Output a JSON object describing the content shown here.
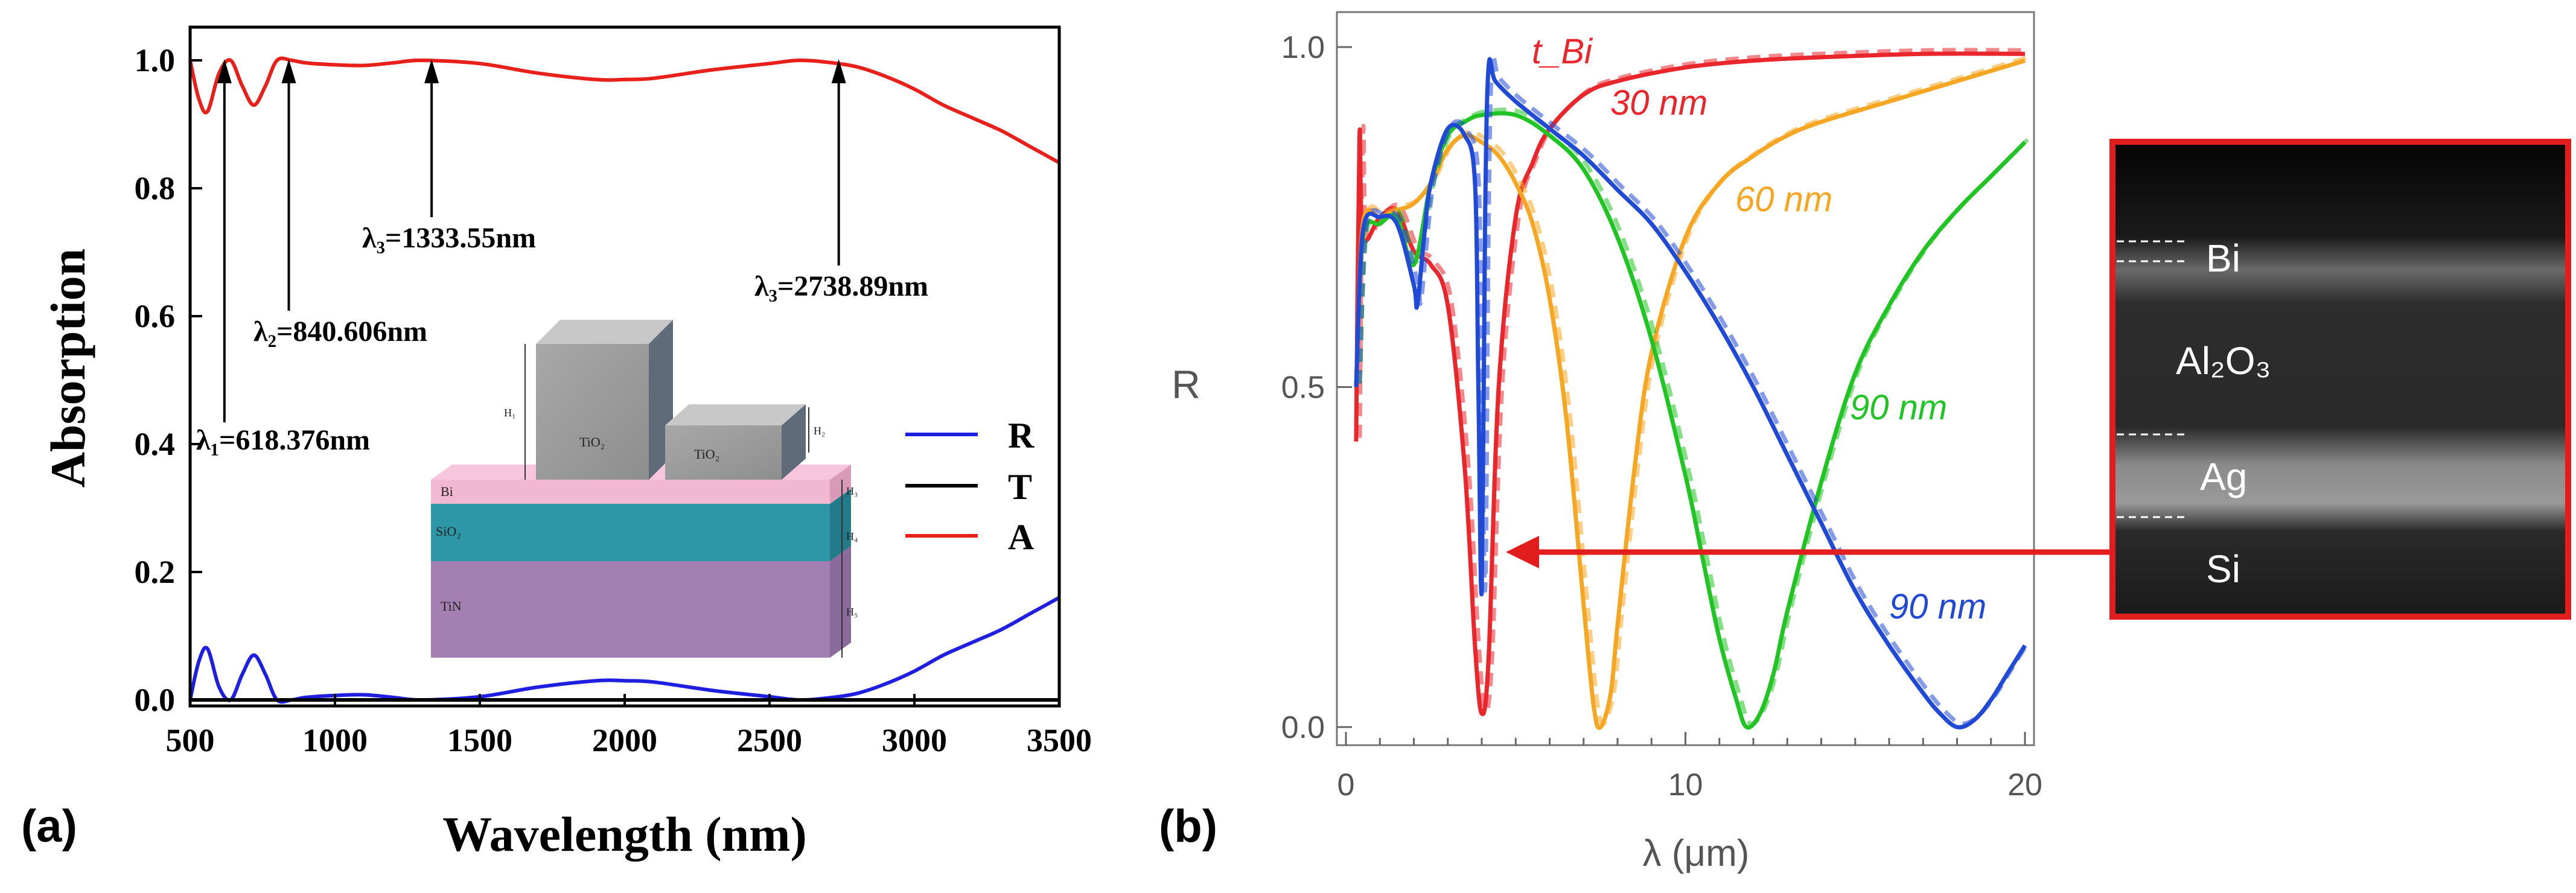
{
  "chart_data": [
    {
      "panel_label": "(a)",
      "type": "line",
      "xlabel": "Wavelength (nm)",
      "ylabel": "Absorption",
      "xlim": [
        500,
        3500
      ],
      "ylim": [
        0.0,
        1.0
      ],
      "xticks": [
        "500",
        "1000",
        "1500",
        "2000",
        "2500",
        "3000",
        "3500"
      ],
      "yticks": [
        "0.0",
        "0.2",
        "0.4",
        "0.6",
        "0.8",
        "1.0"
      ],
      "legend": [
        "R",
        "T",
        "A"
      ],
      "series": [
        {
          "name": "R",
          "color": "#1f1fe0",
          "x": [
            500,
            530,
            560,
            600,
            640,
            680,
            720,
            760,
            800,
            850,
            900,
            1000,
            1100,
            1200,
            1300,
            1500,
            1700,
            1900,
            2000,
            2100,
            2300,
            2500,
            2600,
            2700,
            2800,
            2900,
            3000,
            3100,
            3200,
            3300,
            3400,
            3500
          ],
          "y": [
            0.0,
            0.06,
            0.08,
            0.02,
            0.0,
            0.04,
            0.07,
            0.04,
            0.0,
            0.0,
            0.004,
            0.007,
            0.008,
            0.004,
            0.0,
            0.005,
            0.02,
            0.03,
            0.03,
            0.028,
            0.015,
            0.005,
            0.0,
            0.003,
            0.01,
            0.025,
            0.045,
            0.07,
            0.09,
            0.11,
            0.135,
            0.16
          ]
        },
        {
          "name": "T",
          "color": "#000000",
          "x": [
            500,
            3500
          ],
          "y": [
            0.0,
            0.0
          ]
        },
        {
          "name": "A",
          "color": "#e8201c",
          "x": [
            500,
            530,
            560,
            600,
            640,
            680,
            720,
            760,
            800,
            850,
            900,
            1000,
            1100,
            1200,
            1300,
            1500,
            1700,
            1900,
            2000,
            2100,
            2300,
            2500,
            2600,
            2700,
            2800,
            2900,
            3000,
            3100,
            3200,
            3300,
            3400,
            3500
          ],
          "y": [
            1.0,
            0.94,
            0.92,
            0.98,
            1.0,
            0.96,
            0.93,
            0.96,
            1.0,
            1.0,
            0.996,
            0.993,
            0.992,
            0.996,
            1.0,
            0.995,
            0.98,
            0.97,
            0.97,
            0.972,
            0.985,
            0.995,
            1.0,
            0.997,
            0.99,
            0.975,
            0.955,
            0.93,
            0.91,
            0.89,
            0.865,
            0.84
          ]
        }
      ],
      "annotations": [
        {
          "label": "λ₁=618.376nm",
          "wavelength": 618.376
        },
        {
          "label": "λ₂=840.606nm",
          "wavelength": 840.606
        },
        {
          "label": "λ₃=1333.55nm",
          "wavelength": 1333.55
        },
        {
          "label": "λ₃=2738.89nm",
          "wavelength": 2738.89
        }
      ],
      "inset": {
        "tio2_labels": [
          "TiO₂",
          "TiO₂"
        ],
        "layers": [
          {
            "label": "Bi",
            "height_label": "H₃",
            "color": "#f2b8d2"
          },
          {
            "label": "SiO₂",
            "height_label": "H₄",
            "color": "#2d97a8"
          },
          {
            "label": "TiN",
            "height_label": "H₅",
            "color": "#a480b2"
          }
        ],
        "block_heights": [
          "H₁",
          "H₂"
        ]
      }
    },
    {
      "panel_label": "(b)",
      "type": "line",
      "xlabel": "λ (μm)",
      "ylabel": "R",
      "xlim": [
        0,
        20
      ],
      "ylim": [
        0.0,
        1.0
      ],
      "xticks": [
        "0",
        "10",
        "20"
      ],
      "yticks": [
        "0.0",
        "0.5",
        "1.0"
      ],
      "title_annotation": "t_Bi",
      "series": [
        {
          "name": "30 nm",
          "color": "#e8262b",
          "x": [
            0.3,
            0.4,
            0.5,
            1.0,
            1.5,
            2.0,
            2.5,
            3.0,
            3.5,
            3.8,
            4.0,
            4.2,
            4.5,
            5.0,
            5.5,
            6.0,
            7.0,
            8.0,
            10.0,
            12.0,
            14.0,
            17.0,
            20.0
          ],
          "y": [
            0.42,
            0.87,
            0.72,
            0.75,
            0.76,
            0.7,
            0.68,
            0.62,
            0.38,
            0.12,
            0.02,
            0.1,
            0.5,
            0.75,
            0.83,
            0.88,
            0.93,
            0.95,
            0.97,
            0.98,
            0.985,
            0.99,
            0.99
          ]
        },
        {
          "name": "60 nm",
          "color": "#f5a623",
          "x": [
            0.3,
            0.5,
            1.0,
            1.5,
            2.0,
            2.5,
            3.0,
            3.5,
            4.0,
            4.5,
            5.0,
            5.5,
            6.0,
            6.5,
            7.0,
            7.3,
            7.5,
            7.8,
            8.0,
            8.5,
            9.0,
            10.0,
            11.0,
            12.0,
            13.0,
            14.0,
            16.0,
            18.0,
            20.0
          ],
          "y": [
            0.5,
            0.74,
            0.75,
            0.76,
            0.77,
            0.8,
            0.85,
            0.87,
            0.86,
            0.84,
            0.8,
            0.74,
            0.63,
            0.45,
            0.18,
            0.03,
            0.0,
            0.05,
            0.15,
            0.38,
            0.55,
            0.72,
            0.8,
            0.84,
            0.87,
            0.89,
            0.92,
            0.95,
            0.98
          ]
        },
        {
          "name": "90 nm",
          "color": "#22c425",
          "x": [
            0.3,
            0.5,
            1.0,
            1.5,
            2.0,
            2.5,
            3.0,
            3.5,
            4.0,
            5.0,
            6.0,
            7.0,
            8.0,
            9.0,
            10.0,
            10.5,
            11.0,
            11.5,
            11.8,
            12.2,
            12.6,
            13.0,
            14.0,
            15.0,
            16.0,
            17.0,
            18.0,
            19.0,
            20.0
          ],
          "y": [
            0.5,
            0.72,
            0.74,
            0.75,
            0.68,
            0.8,
            0.87,
            0.89,
            0.9,
            0.9,
            0.87,
            0.82,
            0.72,
            0.57,
            0.37,
            0.25,
            0.13,
            0.04,
            0.0,
            0.02,
            0.08,
            0.17,
            0.36,
            0.52,
            0.62,
            0.7,
            0.76,
            0.81,
            0.86
          ]
        },
        {
          "name": "90 nm",
          "color": "#2049d6",
          "x": [
            0.3,
            0.5,
            1.0,
            1.5,
            2.0,
            2.1,
            2.3,
            2.5,
            3.0,
            3.5,
            3.8,
            3.9,
            4.0,
            4.1,
            4.2,
            4.4,
            5.0,
            6.0,
            7.0,
            8.0,
            9.0,
            10.0,
            11.0,
            12.0,
            13.0,
            14.0,
            15.0,
            16.0,
            17.0,
            17.5,
            18.0,
            18.5,
            19.0,
            19.5,
            20.0
          ],
          "y": [
            0.5,
            0.73,
            0.75,
            0.74,
            0.65,
            0.62,
            0.72,
            0.8,
            0.88,
            0.87,
            0.8,
            0.5,
            0.2,
            0.75,
            0.97,
            0.95,
            0.92,
            0.88,
            0.84,
            0.79,
            0.74,
            0.67,
            0.59,
            0.5,
            0.4,
            0.3,
            0.2,
            0.12,
            0.05,
            0.02,
            0.0,
            0.01,
            0.04,
            0.08,
            0.12
          ]
        }
      ],
      "inset": {
        "layers": [
          "Bi",
          "Al₂O₃",
          "Ag",
          "Si"
        ]
      }
    }
  ]
}
